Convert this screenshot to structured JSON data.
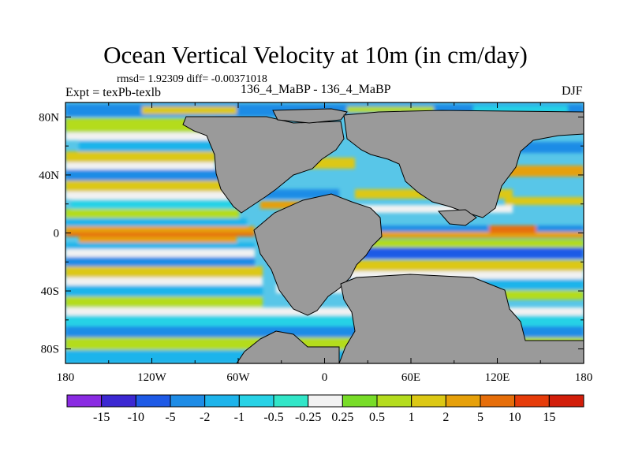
{
  "title": "Ocean Vertical Velocity at 10m (in cm/day)",
  "stats": "rmsd= 1.92309 diff= -0.00371018",
  "experiment": "Expt = texPb-texlb",
  "subtitle": "136_4_MaBP - 136_4_MaBP",
  "season": "DJF",
  "colors": {
    "land": "#9a9a9a",
    "coastline": "#000000"
  },
  "map": {
    "lon_ticks": [
      {
        "value": -180,
        "label": "180"
      },
      {
        "value": -120,
        "label": "120W"
      },
      {
        "value": -60,
        "label": "60W"
      },
      {
        "value": 0,
        "label": "0"
      },
      {
        "value": 60,
        "label": "60E"
      },
      {
        "value": 120,
        "label": "120E"
      },
      {
        "value": 180,
        "label": "180"
      }
    ],
    "lat_ticks": [
      {
        "value": 80,
        "label": "80N"
      },
      {
        "value": 40,
        "label": "40N"
      },
      {
        "value": 0,
        "label": "0"
      },
      {
        "value": -40,
        "label": "40S"
      },
      {
        "value": -80,
        "label": "80S"
      }
    ],
    "lon_range": [
      -180,
      180
    ],
    "lat_range": [
      -90,
      90
    ]
  },
  "colorbar": {
    "boundaries": [
      "-15",
      "-10",
      "-5",
      "-2",
      "-1",
      "-0.5",
      "-0.25",
      "0.25",
      "0.5",
      "1",
      "2",
      "5",
      "10",
      "15"
    ],
    "colors": [
      "#8a2be2",
      "#3c28d2",
      "#1e5ae6",
      "#1e8ce6",
      "#1eb4eb",
      "#28d2e6",
      "#32e6c8",
      "#f2f2f2",
      "#78dc28",
      "#b4dc1e",
      "#dcc814",
      "#e6a00a",
      "#e66e0a",
      "#e63c0a",
      "#d21e0a"
    ]
  }
}
